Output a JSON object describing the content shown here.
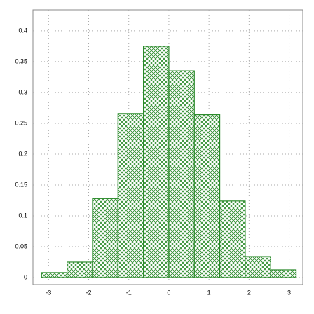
{
  "chart_data": {
    "type": "histogram",
    "bins": [
      -3.175,
      -2.54,
      -1.905,
      -1.27,
      -0.635,
      0,
      0.635,
      1.27,
      1.905,
      2.54,
      3.175
    ],
    "values": [
      0.008,
      0.025,
      0.128,
      0.266,
      0.375,
      0.335,
      0.264,
      0.124,
      0.034,
      0.0125
    ],
    "color": "#2a8a2a",
    "xlim": [
      -3.39,
      3.34
    ],
    "ylim": [
      -0.0114,
      0.434
    ],
    "xticks": [
      -3,
      -2,
      -1,
      0,
      1,
      2,
      3
    ],
    "yticks": [
      0,
      0.05,
      0.1,
      0.15,
      0.2,
      0.25,
      0.3,
      0.35,
      0.4
    ],
    "grid": true
  }
}
